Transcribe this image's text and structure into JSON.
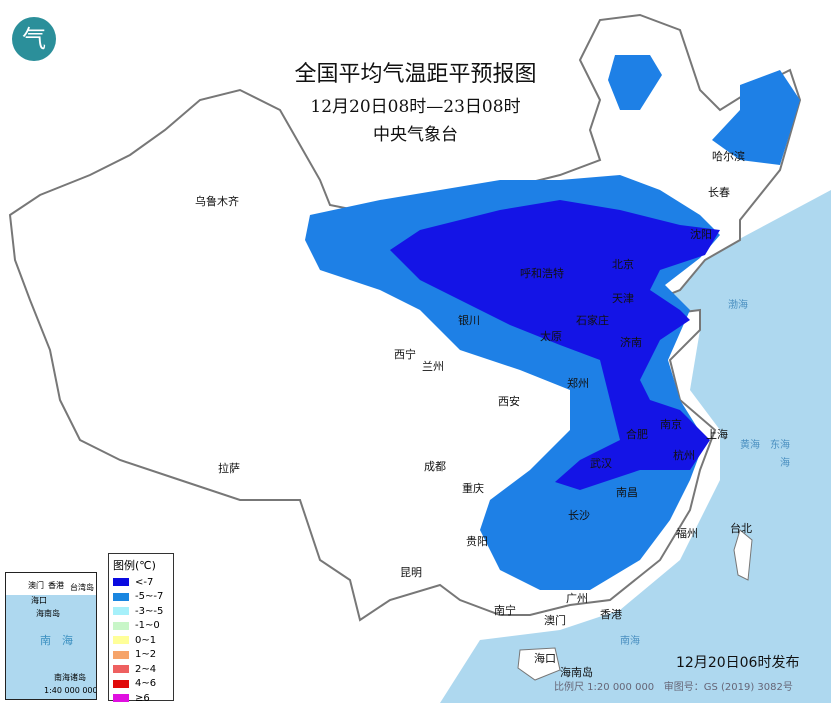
{
  "header": {
    "title": "全国平均气温距平预报图",
    "period": "12月20日08时—23日08时",
    "issuer": "中央气象台"
  },
  "colors": {
    "sea": "#aed8ef",
    "lt_minus7": "#1414e6",
    "minus5_7": "#1e80e6",
    "land": "#ffffff"
  },
  "cities": [
    "乌鲁木齐",
    "哈尔滨",
    "长春",
    "沈阳",
    "呼和浩特",
    "北京",
    "天津",
    "石家庄",
    "太原",
    "济南",
    "银川",
    "西宁",
    "兰州",
    "西安",
    "郑州",
    "合肥",
    "南京",
    "上海",
    "杭州",
    "武汉",
    "南昌",
    "长沙",
    "成都",
    "重庆",
    "贵阳",
    "昆明",
    "拉萨",
    "南宁",
    "广州",
    "香港",
    "澳门",
    "福州",
    "台北",
    "海口",
    "海南岛"
  ],
  "seas": [
    "渤海",
    "黄海",
    "东海",
    "海",
    "南海"
  ],
  "legend": {
    "title": "图例(℃)",
    "items": [
      {
        "label": "<-7",
        "color": "#0a0ae0"
      },
      {
        "label": "-5~-7",
        "color": "#1a86e0"
      },
      {
        "label": "-3~-5",
        "color": "#a6f0fa"
      },
      {
        "label": "-1~0",
        "color": "#c8f6c8"
      },
      {
        "label": "0~1",
        "color": "#ffff99"
      },
      {
        "label": "1~2",
        "color": "#f6a46a"
      },
      {
        "label": "2~4",
        "color": "#ee6060"
      },
      {
        "label": "4~6",
        "color": "#e00a0a"
      },
      {
        "label": "≥6",
        "color": "#e010e0"
      }
    ]
  },
  "inset": {
    "labels": [
      "澳门",
      "香港",
      "台湾岛",
      "海口",
      "海南岛",
      "南",
      "海",
      "南海诸岛"
    ],
    "scale": "1:40 000 000"
  },
  "footer": {
    "issued": "12月20日06时发布",
    "scale": "比例尺 1:20 000 000",
    "map_no": "审图号：GS (2019) 3082号"
  },
  "logo": {
    "text": "气"
  }
}
